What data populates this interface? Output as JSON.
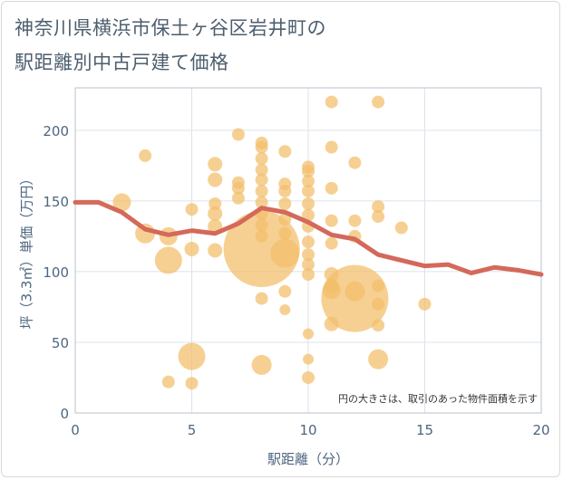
{
  "chart_data": {
    "type": "scatter",
    "title_lines": [
      "神奈川県横浜市保土ヶ谷区岩井町の",
      "駅距離別中古戸建て価格"
    ],
    "xlabel": "駅距離（分）",
    "ylabel": "坪（3.3㎡）単価（万円）",
    "xlim": [
      0,
      20
    ],
    "ylim": [
      0,
      230
    ],
    "x_ticks": [
      0,
      5,
      10,
      15,
      20
    ],
    "y_ticks": [
      0,
      50,
      100,
      150,
      200
    ],
    "grid": true,
    "note": "円の大きさは、取引のあった物件面積を示す",
    "colors": {
      "bubble": "#f2be6a",
      "line": "#d4695a",
      "grid": "#dde3ea",
      "plot_border": "#b8c2cc",
      "axis": "#4d6680"
    },
    "bubbles": [
      {
        "x": 2,
        "y": 149,
        "s": 10
      },
      {
        "x": 3,
        "y": 182,
        "s": 7
      },
      {
        "x": 3,
        "y": 127,
        "s": 11
      },
      {
        "x": 4,
        "y": 125,
        "s": 10
      },
      {
        "x": 4,
        "y": 108,
        "s": 15
      },
      {
        "x": 4,
        "y": 22,
        "s": 7
      },
      {
        "x": 5,
        "y": 144,
        "s": 7
      },
      {
        "x": 5,
        "y": 116,
        "s": 8
      },
      {
        "x": 5,
        "y": 40,
        "s": 15
      },
      {
        "x": 5,
        "y": 21,
        "s": 7
      },
      {
        "x": 6,
        "y": 176,
        "s": 8
      },
      {
        "x": 6,
        "y": 165,
        "s": 8
      },
      {
        "x": 6,
        "y": 148,
        "s": 7
      },
      {
        "x": 6,
        "y": 141,
        "s": 8
      },
      {
        "x": 6,
        "y": 132,
        "s": 8
      },
      {
        "x": 6,
        "y": 115,
        "s": 8
      },
      {
        "x": 7,
        "y": 197,
        "s": 7
      },
      {
        "x": 7,
        "y": 163,
        "s": 7
      },
      {
        "x": 7,
        "y": 159,
        "s": 7
      },
      {
        "x": 7,
        "y": 152,
        "s": 7
      },
      {
        "x": 8,
        "y": 191,
        "s": 7
      },
      {
        "x": 8,
        "y": 188,
        "s": 7
      },
      {
        "x": 8,
        "y": 180,
        "s": 7
      },
      {
        "x": 8,
        "y": 172,
        "s": 7
      },
      {
        "x": 8,
        "y": 165,
        "s": 7
      },
      {
        "x": 8,
        "y": 157,
        "s": 7
      },
      {
        "x": 8,
        "y": 149,
        "s": 7
      },
      {
        "x": 8,
        "y": 141,
        "s": 7
      },
      {
        "x": 8,
        "y": 133,
        "s": 7
      },
      {
        "x": 8,
        "y": 125,
        "s": 7
      },
      {
        "x": 8,
        "y": 116,
        "s": 42
      },
      {
        "x": 8,
        "y": 81,
        "s": 7
      },
      {
        "x": 8,
        "y": 34,
        "s": 11
      },
      {
        "x": 9,
        "y": 185,
        "s": 7
      },
      {
        "x": 9,
        "y": 162,
        "s": 7
      },
      {
        "x": 9,
        "y": 157,
        "s": 7
      },
      {
        "x": 9,
        "y": 148,
        "s": 7
      },
      {
        "x": 9,
        "y": 137,
        "s": 7
      },
      {
        "x": 9,
        "y": 127,
        "s": 7
      },
      {
        "x": 9,
        "y": 113,
        "s": 16
      },
      {
        "x": 9,
        "y": 86,
        "s": 7
      },
      {
        "x": 9,
        "y": 73,
        "s": 6
      },
      {
        "x": 10,
        "y": 174,
        "s": 7
      },
      {
        "x": 10,
        "y": 171,
        "s": 7
      },
      {
        "x": 10,
        "y": 164,
        "s": 7
      },
      {
        "x": 10,
        "y": 157,
        "s": 7
      },
      {
        "x": 10,
        "y": 148,
        "s": 7
      },
      {
        "x": 10,
        "y": 140,
        "s": 7
      },
      {
        "x": 10,
        "y": 132,
        "s": 7
      },
      {
        "x": 10,
        "y": 121,
        "s": 7
      },
      {
        "x": 10,
        "y": 112,
        "s": 7
      },
      {
        "x": 10,
        "y": 105,
        "s": 7
      },
      {
        "x": 10,
        "y": 98,
        "s": 7
      },
      {
        "x": 10,
        "y": 56,
        "s": 6
      },
      {
        "x": 10,
        "y": 38,
        "s": 6
      },
      {
        "x": 10,
        "y": 25,
        "s": 7
      },
      {
        "x": 11,
        "y": 220,
        "s": 7
      },
      {
        "x": 11,
        "y": 188,
        "s": 7
      },
      {
        "x": 11,
        "y": 159,
        "s": 7
      },
      {
        "x": 11,
        "y": 136,
        "s": 7
      },
      {
        "x": 11,
        "y": 120,
        "s": 7
      },
      {
        "x": 11,
        "y": 98,
        "s": 8
      },
      {
        "x": 11,
        "y": 90,
        "s": 8
      },
      {
        "x": 11,
        "y": 87,
        "s": 10
      },
      {
        "x": 11,
        "y": 63,
        "s": 8
      },
      {
        "x": 12,
        "y": 177,
        "s": 7
      },
      {
        "x": 12,
        "y": 136,
        "s": 7
      },
      {
        "x": 12,
        "y": 125,
        "s": 7
      },
      {
        "x": 12,
        "y": 81,
        "s": 37
      },
      {
        "x": 12,
        "y": 86,
        "s": 11
      },
      {
        "x": 13,
        "y": 220,
        "s": 7
      },
      {
        "x": 13,
        "y": 146,
        "s": 7
      },
      {
        "x": 13,
        "y": 139,
        "s": 7
      },
      {
        "x": 13,
        "y": 90,
        "s": 7
      },
      {
        "x": 13,
        "y": 77,
        "s": 7
      },
      {
        "x": 13,
        "y": 62,
        "s": 7
      },
      {
        "x": 13,
        "y": 38,
        "s": 11
      },
      {
        "x": 14,
        "y": 131,
        "s": 7
      },
      {
        "x": 15,
        "y": 77,
        "s": 7
      }
    ],
    "trend": {
      "x": [
        0,
        1,
        2,
        3,
        4,
        5,
        6,
        7,
        8,
        9,
        10,
        11,
        12,
        13,
        14,
        15,
        16,
        17,
        18,
        19,
        20
      ],
      "y": [
        149,
        149,
        142,
        130,
        126,
        129,
        127,
        134,
        145,
        142,
        135,
        126,
        123,
        112,
        108,
        104,
        105,
        99,
        103,
        101,
        98
      ]
    }
  }
}
